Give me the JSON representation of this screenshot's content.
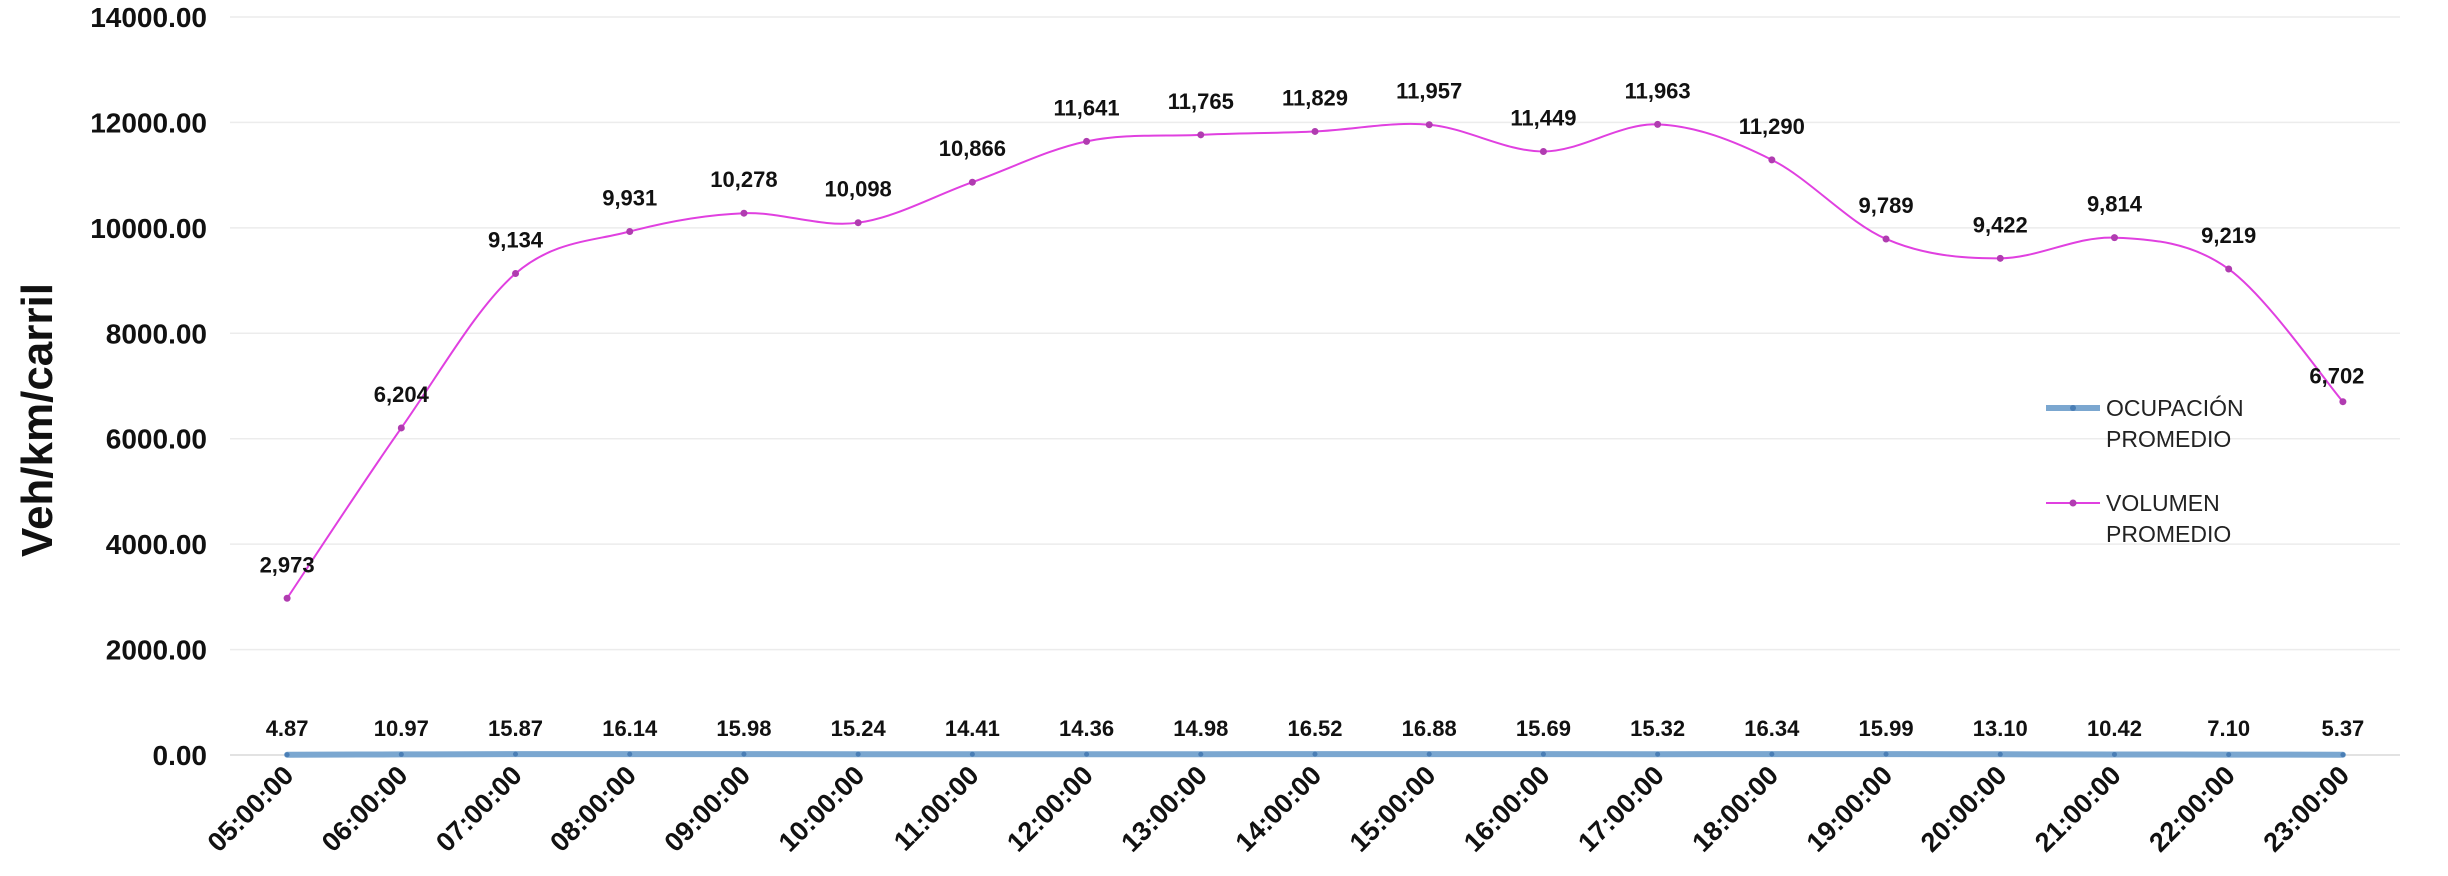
{
  "chart_data": {
    "type": "line",
    "ylabel": "Veh/km/carril",
    "ylim": [
      0,
      14000
    ],
    "yticks": [
      "0.00",
      "2000.00",
      "4000.00",
      "6000.00",
      "8000.00",
      "10000.00",
      "12000.00",
      "14000.00"
    ],
    "categories": [
      "05:00:00",
      "06:00:00",
      "07:00:00",
      "08:00:00",
      "09:00:00",
      "10:00:00",
      "11:00:00",
      "12:00:00",
      "13:00:00",
      "14:00:00",
      "15:00:00",
      "16:00:00",
      "17:00:00",
      "18:00:00",
      "19:00:00",
      "20:00:00",
      "21:00:00",
      "22:00:00",
      "23:00:00"
    ],
    "grid": true,
    "legend_position": "right",
    "series": [
      {
        "name": "OCUPACIÓN PROMEDIO",
        "color": "#7ba7d0",
        "values": [
          4.87,
          10.97,
          15.87,
          16.14,
          15.98,
          15.24,
          14.41,
          14.36,
          14.98,
          16.52,
          16.88,
          15.69,
          15.32,
          16.34,
          15.99,
          13.1,
          10.42,
          7.1,
          5.37
        ],
        "labels": [
          "4.87",
          "10.97",
          "15.87",
          "16.14",
          "15.98",
          "15.24",
          "14.41",
          "14.36",
          "14.98",
          "16.52",
          "16.88",
          "15.69",
          "15.32",
          "16.34",
          "15.99",
          "13.10",
          "10.42",
          "7.10",
          "5.37"
        ]
      },
      {
        "name": "VOLUMEN PROMEDIO",
        "color": "#e040e0",
        "values": [
          2973,
          6204,
          9134,
          9931,
          10278,
          10098,
          10866,
          11641,
          11765,
          11829,
          11957,
          11449,
          11963,
          11290,
          9789,
          9422,
          9814,
          9219,
          6702
        ],
        "labels": [
          "2,973",
          "6,204",
          "9,134",
          "9,931",
          "10,278",
          "10,098",
          "10,866",
          "11,641",
          "11,765",
          "11,829",
          "11,957",
          "11,449",
          "11,963",
          "11,290",
          "9,789",
          "9,422",
          "9,814",
          "9,219",
          "6,702"
        ]
      }
    ],
    "legend": {
      "entries": [
        {
          "lines": [
            "OCUPACIÓN",
            "PROMEDIO"
          ]
        },
        {
          "lines": [
            "VOLUMEN",
            "PROMEDIO"
          ]
        }
      ]
    }
  }
}
